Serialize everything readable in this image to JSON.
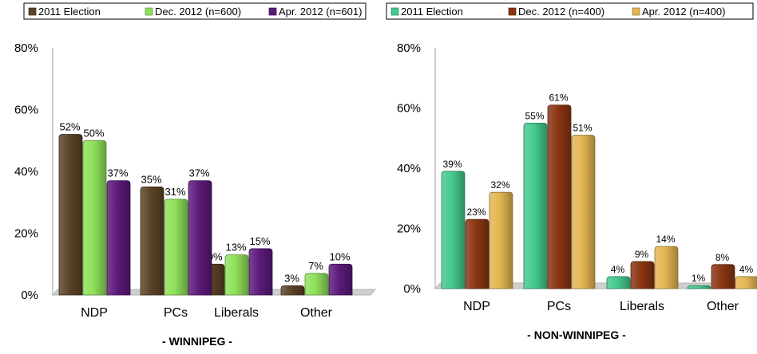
{
  "chart_data": [
    {
      "type": "bar",
      "subtitle": "- WINNIPEG -",
      "categories": [
        "NDP",
        "PCs",
        "Liberals",
        "Other"
      ],
      "ylim": [
        0,
        80
      ],
      "yticks": [
        "0%",
        "20%",
        "40%",
        "60%",
        "80%"
      ],
      "legend_position": "top",
      "series": [
        {
          "name": "2011 Election",
          "color": "#5a4327",
          "values": [
            52,
            35,
            10,
            3
          ],
          "labels": [
            "52%",
            "35%",
            "10%",
            "3%"
          ]
        },
        {
          "name": "Dec. 2012 (n=600)",
          "color": "#8fe05a",
          "values": [
            50,
            31,
            13,
            7
          ],
          "labels": [
            "50%",
            "31%",
            "13%",
            "7%"
          ]
        },
        {
          "name": "Apr. 2012 (n=601)",
          "color": "#5c1a7a",
          "values": [
            37,
            37,
            15,
            10
          ],
          "labels": [
            "37%",
            "37%",
            "15%",
            "10%"
          ]
        }
      ]
    },
    {
      "type": "bar",
      "subtitle": "- NON-WINNIPEG -",
      "categories": [
        "NDP",
        "PCs",
        "Liberals",
        "Other"
      ],
      "ylim": [
        0,
        80
      ],
      "yticks": [
        "0%",
        "20%",
        "40%",
        "60%",
        "80%"
      ],
      "legend_position": "top",
      "series": [
        {
          "name": "2011 Election",
          "color": "#45c98e",
          "values": [
            39,
            55,
            4,
            1
          ],
          "labels": [
            "39%",
            "55%",
            "4%",
            "1%"
          ]
        },
        {
          "name": "Dec. 2012 (n=400)",
          "color": "#8a3512",
          "values": [
            23,
            61,
            9,
            8
          ],
          "labels": [
            "23%",
            "61%",
            "9%",
            "8%"
          ]
        },
        {
          "name": "Apr. 2012 (n=400)",
          "color": "#e3b652",
          "values": [
            32,
            51,
            14,
            4
          ],
          "labels": [
            "32%",
            "51%",
            "14%",
            "4%"
          ]
        }
      ]
    }
  ]
}
